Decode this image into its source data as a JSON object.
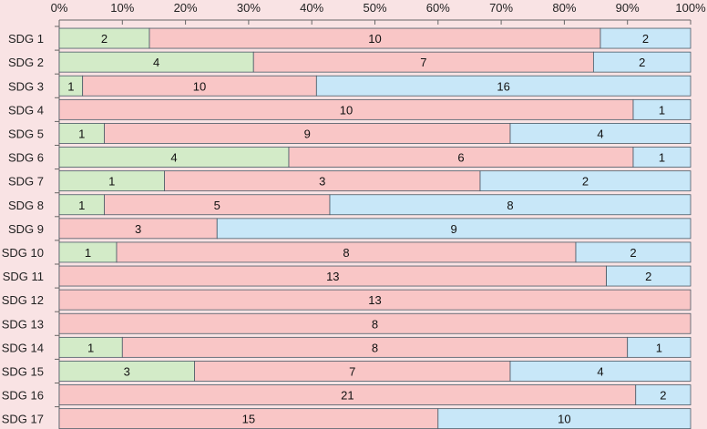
{
  "chart_data": {
    "type": "bar",
    "orientation": "horizontal",
    "stacked": "percent",
    "title": "",
    "xlabel": "",
    "ylabel": "",
    "xlim": [
      0,
      100
    ],
    "x_tick_labels": [
      "0%",
      "10%",
      "20%",
      "30%",
      "40%",
      "50%",
      "60%",
      "70%",
      "80%",
      "90%",
      "100%"
    ],
    "categories": [
      "SDG 1",
      "SDG 2",
      "SDG 3",
      "SDG 4",
      "SDG 5",
      "SDG 6",
      "SDG 7",
      "SDG 8",
      "SDG 9",
      "SDG 10",
      "SDG 11",
      "SDG 12",
      "SDG 13",
      "SDG 14",
      "SDG 15",
      "SDG 16",
      "SDG 17"
    ],
    "series": [
      {
        "name": "green",
        "color": "#d3ebc8",
        "values": [
          2,
          4,
          1,
          0,
          1,
          4,
          1,
          1,
          0,
          1,
          0,
          0,
          0,
          1,
          3,
          0,
          0
        ]
      },
      {
        "name": "red",
        "color": "#f9c6c6",
        "values": [
          10,
          7,
          10,
          10,
          9,
          6,
          3,
          5,
          3,
          8,
          13,
          13,
          8,
          8,
          7,
          21,
          15
        ]
      },
      {
        "name": "blue",
        "color": "#c8e7f8",
        "values": [
          2,
          2,
          16,
          1,
          4,
          1,
          2,
          8,
          9,
          2,
          2,
          0,
          0,
          1,
          4,
          2,
          10
        ]
      }
    ],
    "grid": false,
    "legend": "none"
  }
}
